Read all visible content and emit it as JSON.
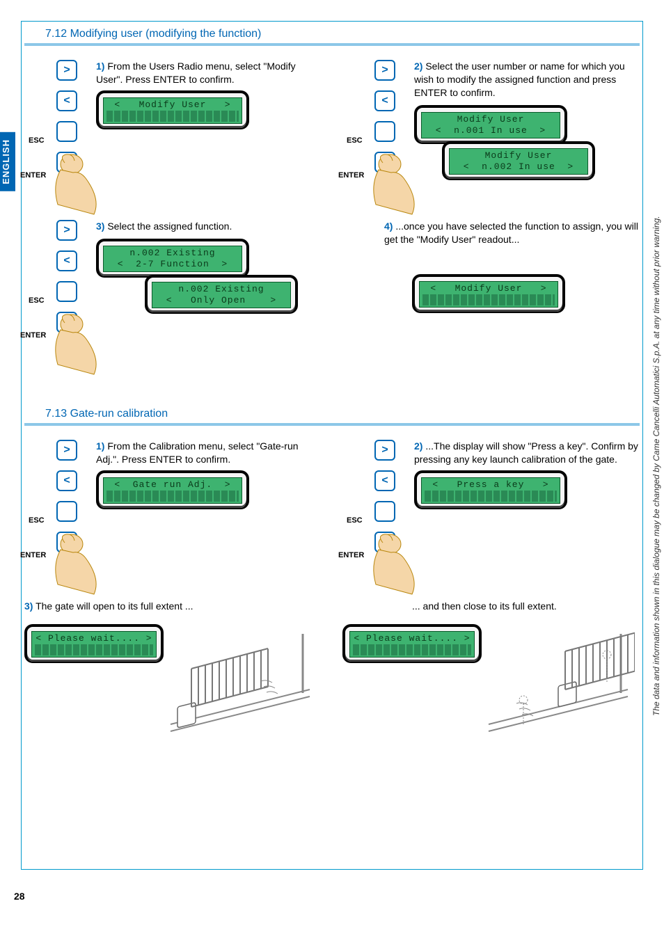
{
  "page_number": "28",
  "language_tab": "ENGLISH",
  "side_note": "The data and information shown in this dialogue may be changed by Came Cancelli Automatici S.p.A. at any time without prior warning.",
  "sections": {
    "s712": {
      "heading": "7.12 Modifying user (modifying the function)",
      "step1": {
        "num": "1)",
        "text": " From the Users Radio menu, select \"Modify User\". Press ENTER to confirm.",
        "lcd_top": "<   Modify User   >",
        "lcd_bot": ""
      },
      "step2": {
        "num": "2)",
        "text": " Select the user number or name for which you wish to modify the assigned function and press ENTER to confirm.",
        "lcd1_top": "Modify User",
        "lcd1_bot": "<  n.001 In use  >",
        "lcd2_top": "Modify User",
        "lcd2_bot": "<  n.002 In use  >"
      },
      "step3": {
        "num": "3)",
        "text": " Select the assigned function.",
        "lcd1_top": "n.002 Existing",
        "lcd1_bot": "<  2-7 Function  >",
        "lcd2_top": "n.002 Existing",
        "lcd2_bot": "<   Only Open    >"
      },
      "step4": {
        "num": "4)",
        "text": " ...once you have selected the function to assign, you will get the \"Modify User\" readout...",
        "lcd_top": "<   Modify User   >",
        "lcd_bot": ""
      }
    },
    "s713": {
      "heading": "7.13 Gate-run calibration",
      "step1": {
        "num": "1)",
        "text": " From the Calibration menu, select \"Gate-run Adj.\". Press ENTER to confirm.",
        "lcd_top": "<  Gate run Adj.  >",
        "lcd_bot": ""
      },
      "step2": {
        "num": "2)",
        "text": " ...The display will show \"Press a key\". Confirm by pressing any key launch calibration of the gate.",
        "lcd_top": "<   Press a key   >",
        "lcd_bot": ""
      },
      "step3": {
        "num": "3)",
        "text": " The gate will open to its full extent ...",
        "lcd": "< Please wait.... >"
      },
      "step4": {
        "text": "... and then close to its full extent.",
        "lcd": "< Please wait.... >"
      }
    }
  },
  "keypad": {
    "up": ">",
    "down": "<",
    "esc": "ESC",
    "enter": "ENTER"
  },
  "colors": {
    "brand_blue": "#0066b3",
    "heading_underline": "#8cc7e8",
    "lcd_bg": "#3eb370",
    "lcd_text": "#0a3a1a",
    "border_cyan": "#0099cc",
    "skin": "#f5d6a8",
    "skin_line": "#b8860b"
  }
}
